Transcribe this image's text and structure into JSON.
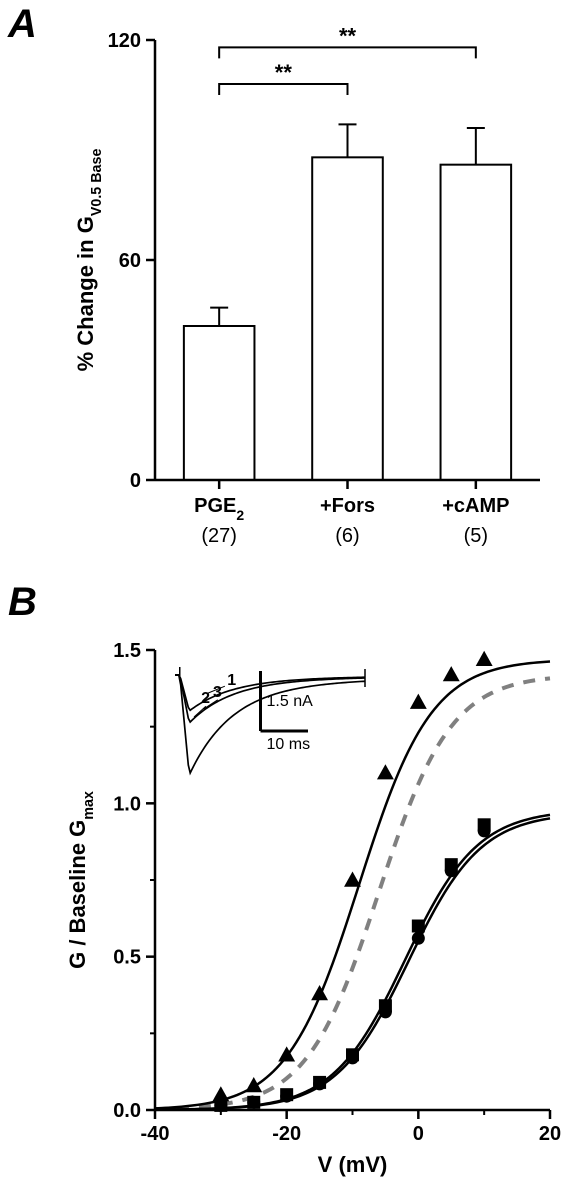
{
  "panelA": {
    "label": "A",
    "label_fontsize": 40,
    "yaxis_title": "% Change in G ₁ V0.5 Base",
    "yaxis_title_plain": "% Change in G_V0.5 Base",
    "label_fontsize_axis": 22,
    "tick_fontsize": 20,
    "categories": [
      "PGE₂",
      "+Fors",
      "+cAMP"
    ],
    "n_labels": [
      "(27)",
      "(6)",
      "(5)"
    ],
    "values": [
      42,
      88,
      86
    ],
    "errors": [
      5,
      9,
      10
    ],
    "ylim": [
      0,
      120
    ],
    "yticks": [
      0,
      60,
      120
    ],
    "bar_width": 0.55,
    "colors": {
      "bar_fill": "#ffffff",
      "bar_stroke": "#000000",
      "axis": "#000000",
      "text": "#000000"
    },
    "sig_marks": [
      {
        "from": 0,
        "to": 1,
        "label": "**",
        "y": 108
      },
      {
        "from": 0,
        "to": 2,
        "label": "**",
        "y": 118
      }
    ]
  },
  "panelB": {
    "label": "B",
    "label_fontsize": 40,
    "xaxis_title": "V (mV)",
    "yaxis_title": "G / Baseline G_max",
    "label_fontsize_axis": 22,
    "tick_fontsize": 20,
    "xlim": [
      -40,
      20
    ],
    "ylim": [
      0,
      1.5
    ],
    "xticks": [
      -40,
      -20,
      0,
      20
    ],
    "yticks": [
      0.0,
      0.5,
      1.0,
      1.5
    ],
    "colors": {
      "axis": "#000000",
      "text": "#000000",
      "baseline_dashed": "#808080",
      "series_tri": "#000000",
      "series_sq": "#000000",
      "series_circ": "#000000"
    },
    "series": [
      {
        "name": "triangles",
        "marker": "triangle",
        "color": "#000000",
        "x": [
          -30,
          -25,
          -20,
          -15,
          -10,
          -5,
          0,
          5,
          10
        ],
        "y": [
          0.05,
          0.08,
          0.18,
          0.38,
          0.75,
          1.1,
          1.33,
          1.42,
          1.47
        ],
        "fit": {
          "Vhalf": -9,
          "slope": 5.5,
          "Gmax": 1.47
        }
      },
      {
        "name": "squares",
        "marker": "square",
        "color": "#000000",
        "x": [
          -30,
          -25,
          -20,
          -15,
          -10,
          -5,
          0,
          5,
          10
        ],
        "y": [
          0.015,
          0.025,
          0.05,
          0.09,
          0.18,
          0.34,
          0.6,
          0.8,
          0.93
        ],
        "fit": {
          "Vhalf": -2,
          "slope": 5.5,
          "Gmax": 0.98
        }
      },
      {
        "name": "circles",
        "marker": "circle",
        "color": "#000000",
        "x": [
          -30,
          -25,
          -20,
          -15,
          -10,
          -5,
          0,
          5,
          10
        ],
        "y": [
          0.015,
          0.025,
          0.045,
          0.085,
          0.17,
          0.32,
          0.56,
          0.78,
          0.91
        ],
        "fit": {
          "Vhalf": -1.5,
          "slope": 5.5,
          "Gmax": 0.97
        }
      }
    ],
    "baseline_dashed": {
      "Vhalf": -6,
      "slope": 5.5,
      "Gmax": 1.42,
      "color": "#808080"
    },
    "inset": {
      "scale_bar": {
        "x_label": "10 ms",
        "y_label": "1.5 nA"
      },
      "trace_labels": [
        "1",
        "2",
        "3"
      ],
      "trace_peaks": [
        -2.5,
        -1.2,
        -0.9
      ]
    }
  }
}
